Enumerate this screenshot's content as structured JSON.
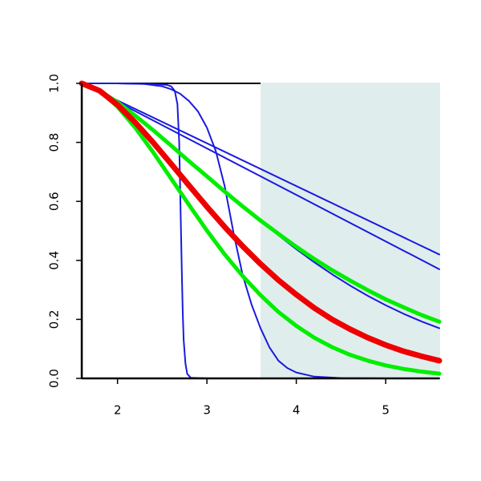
{
  "chart_data": {
    "type": "line",
    "xlim": [
      1.6,
      5.6
    ],
    "ylim": [
      0,
      1
    ],
    "xticks": [
      2,
      3,
      4,
      5
    ],
    "yticks": [
      {
        "value": 0,
        "label": "0.0"
      },
      0.2,
      0.4,
      0.6,
      0.8,
      {
        "value": 1,
        "label": "1.0"
      }
    ],
    "shaded_region": {
      "x": [
        3.6,
        5.6
      ],
      "color": "#e0eded"
    },
    "series": [
      {
        "color": "#1a1adf",
        "line_width": 2,
        "x": [
          1.6,
          5.6
        ],
        "values": [
          1,
          0.42
        ]
      },
      {
        "color": "#1a1adf",
        "line_width": 2,
        "x": [
          1.6,
          5.6
        ],
        "values": [
          1,
          0.37
        ]
      },
      {
        "color": "#1a1adf",
        "line_width": 2,
        "x": [
          1.6,
          1.8,
          2.0,
          2.2,
          2.4,
          2.6,
          2.8,
          3.0,
          3.2,
          3.4,
          3.6,
          3.8,
          4.0,
          4.2,
          4.4,
          4.6,
          4.8,
          5.0,
          5.2,
          5.4,
          5.6
        ],
        "values": [
          1,
          0.975,
          0.936,
          0.89,
          0.841,
          0.789,
          0.736,
          0.685,
          0.633,
          0.583,
          0.535,
          0.485,
          0.438,
          0.394,
          0.353,
          0.315,
          0.28,
          0.248,
          0.219,
          0.193,
          0.17
        ]
      },
      {
        "color": "#1a1adf",
        "line_width": 2,
        "x": [
          1.6,
          2.0,
          2.4,
          2.55,
          2.6,
          2.64,
          2.67,
          2.69,
          2.7,
          2.71,
          2.72,
          2.73,
          2.74,
          2.76,
          2.78,
          2.82,
          3.0,
          5.6
        ],
        "values": [
          1,
          1,
          0.998,
          0.995,
          0.99,
          0.975,
          0.93,
          0.8,
          0.65,
          0.5,
          0.35,
          0.22,
          0.13,
          0.05,
          0.015,
          0.002,
          0,
          0
        ]
      },
      {
        "color": "#1a1adf",
        "line_width": 2,
        "x": [
          1.6,
          2.0,
          2.3,
          2.5,
          2.6,
          2.7,
          2.8,
          2.9,
          3.0,
          3.1,
          3.2,
          3.3,
          3.4,
          3.5,
          3.6,
          3.7,
          3.8,
          3.9,
          4.0,
          4.2,
          4.5,
          5.0,
          5.6
        ],
        "values": [
          1,
          1,
          0.998,
          0.99,
          0.98,
          0.965,
          0.94,
          0.905,
          0.85,
          0.77,
          0.65,
          0.49,
          0.35,
          0.25,
          0.17,
          0.105,
          0.06,
          0.035,
          0.02,
          0.006,
          0.001,
          0,
          0
        ]
      },
      {
        "color": "#00ee00",
        "line_width": 5,
        "x": [
          1.6,
          1.8,
          2.0,
          2.2,
          2.4,
          2.6,
          2.8,
          3.0,
          3.2,
          3.4,
          3.6,
          3.8,
          4.0,
          4.2,
          4.4,
          4.6,
          4.8,
          5.0,
          5.2,
          5.4,
          5.6
        ],
        "values": [
          1,
          0.975,
          0.936,
          0.89,
          0.841,
          0.789,
          0.736,
          0.685,
          0.633,
          0.583,
          0.535,
          0.49,
          0.446,
          0.405,
          0.367,
          0.332,
          0.299,
          0.268,
          0.241,
          0.215,
          0.192
        ]
      },
      {
        "color": "#00ee00",
        "line_width": 5,
        "x": [
          1.6,
          1.8,
          2.0,
          2.2,
          2.4,
          2.6,
          2.8,
          3.0,
          3.2,
          3.4,
          3.6,
          3.8,
          4.0,
          4.2,
          4.4,
          4.6,
          4.8,
          5.0,
          5.2,
          5.4,
          5.6
        ],
        "values": [
          1,
          0.975,
          0.921,
          0.849,
          0.766,
          0.677,
          0.588,
          0.501,
          0.42,
          0.347,
          0.282,
          0.225,
          0.178,
          0.138,
          0.106,
          0.08,
          0.06,
          0.044,
          0.032,
          0.023,
          0.016
        ]
      },
      {
        "color": "#ee0000",
        "line_width": 7,
        "x": [
          1.6,
          1.8,
          2.0,
          2.2,
          2.4,
          2.6,
          2.8,
          3.0,
          3.2,
          3.4,
          3.6,
          3.8,
          4.0,
          4.2,
          4.4,
          4.6,
          4.8,
          5.0,
          5.2,
          5.4,
          5.6
        ],
        "values": [
          1,
          0.975,
          0.927,
          0.867,
          0.799,
          0.727,
          0.654,
          0.582,
          0.513,
          0.448,
          0.388,
          0.333,
          0.284,
          0.239,
          0.2,
          0.167,
          0.138,
          0.113,
          0.092,
          0.075,
          0.06
        ]
      }
    ]
  }
}
